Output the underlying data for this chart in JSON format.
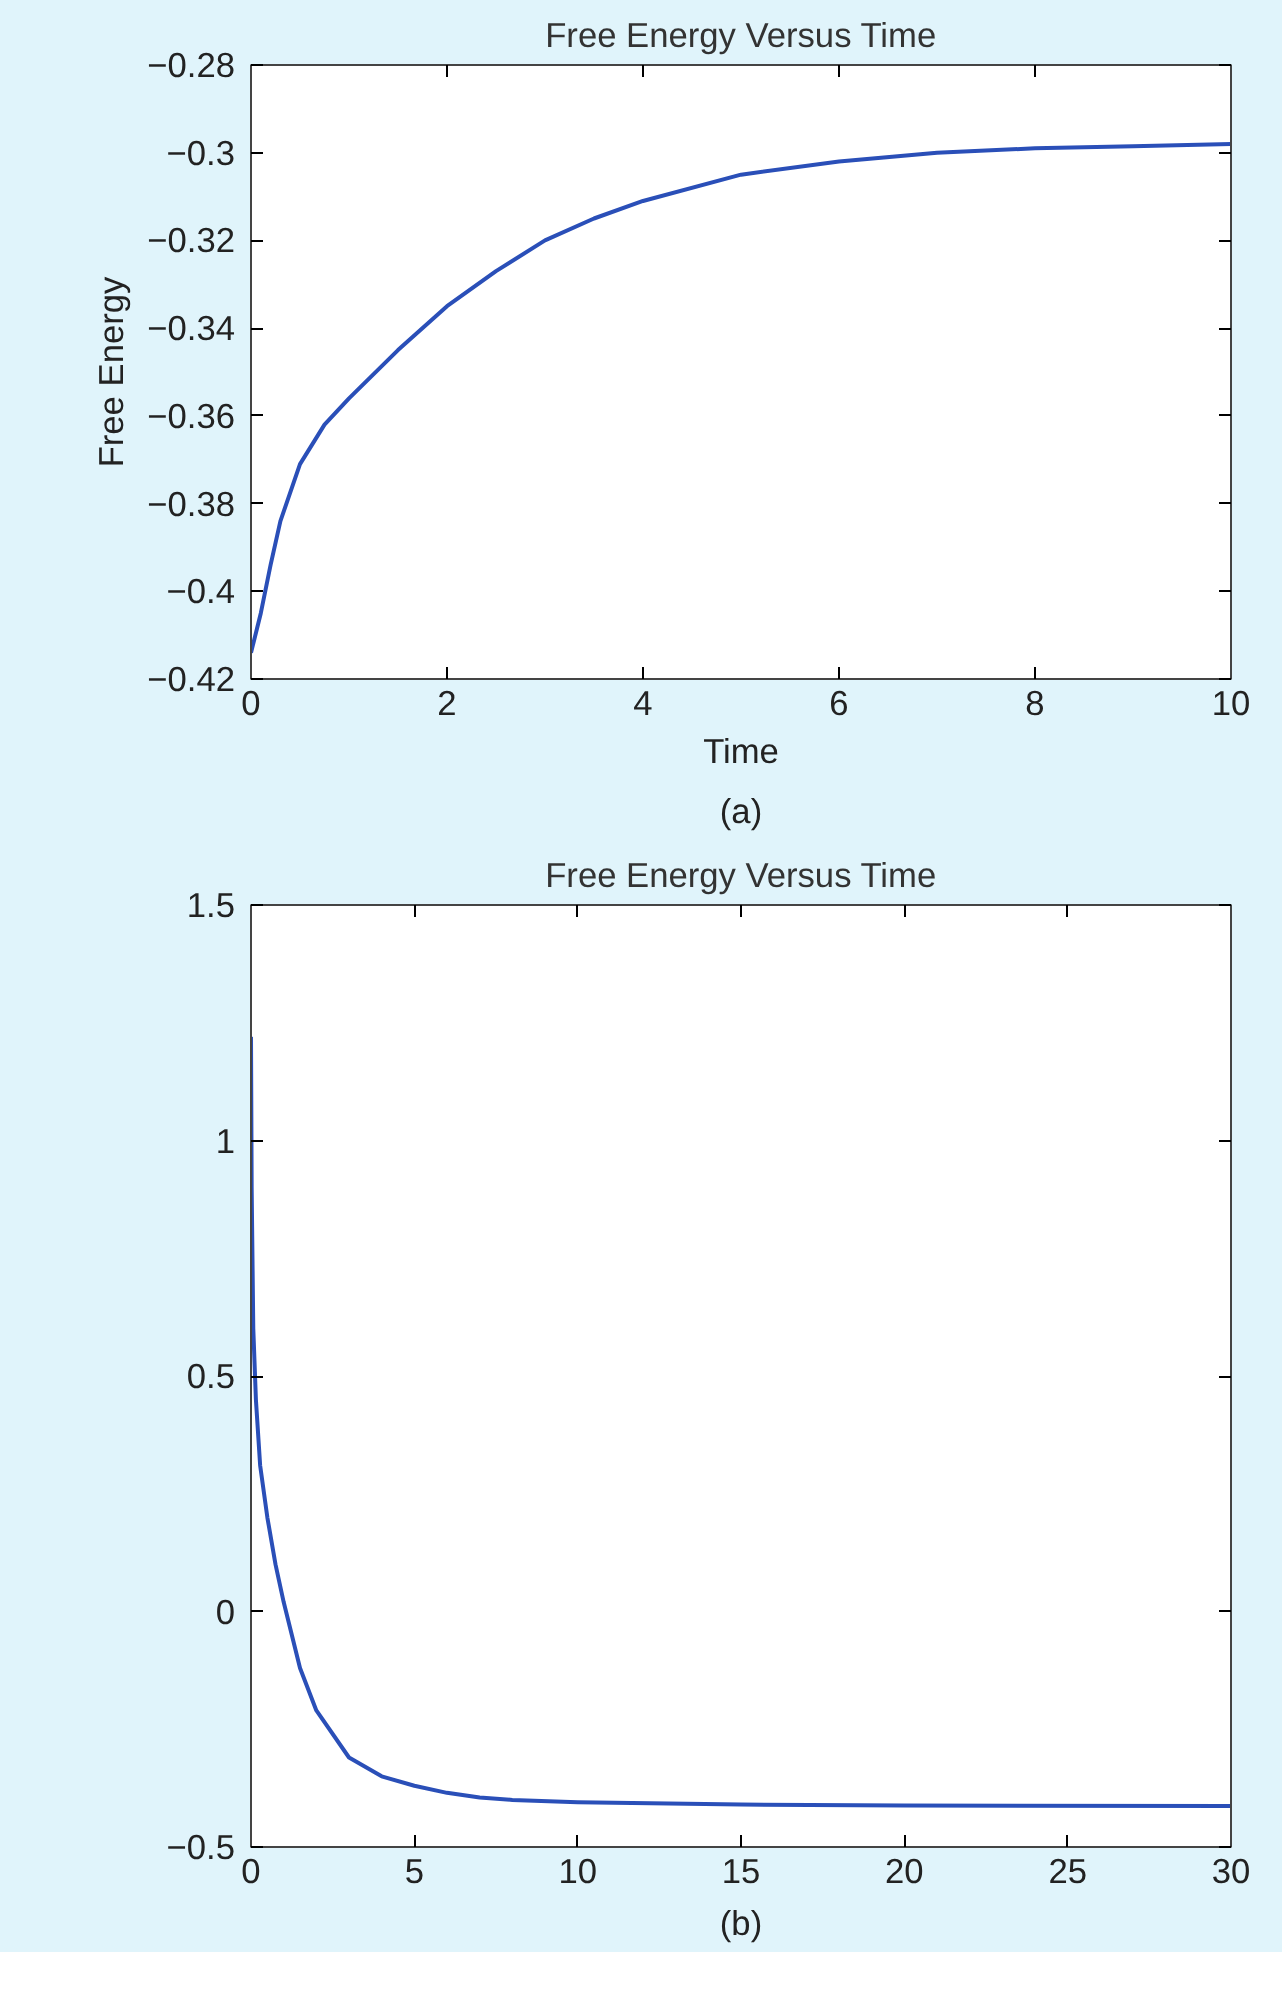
{
  "chart_data": [
    {
      "type": "line",
      "title": "Free Energy Versus Time",
      "xlabel": "Time",
      "ylabel": "Free Energy",
      "annotations": [
        "(a)"
      ],
      "x": [
        0,
        0.1,
        0.2,
        0.3,
        0.5,
        0.75,
        1,
        1.5,
        2,
        2.5,
        3,
        3.5,
        4,
        5,
        6,
        7,
        8,
        9,
        10
      ],
      "series": [
        {
          "color": "#2a4fb8",
          "values": [
            -0.414,
            -0.405,
            -0.394,
            -0.384,
            -0.371,
            -0.362,
            -0.356,
            -0.345,
            -0.335,
            -0.327,
            -0.32,
            -0.315,
            -0.311,
            -0.305,
            -0.302,
            -0.3,
            -0.299,
            -0.2985,
            -0.298
          ]
        }
      ],
      "xlim": [
        0,
        10
      ],
      "xticks": [
        0,
        2,
        4,
        6,
        8,
        10
      ],
      "ylim": [
        -0.42,
        -0.28
      ],
      "yticks": [
        {
          "value": -0.42,
          "label": "−0.42"
        },
        {
          "value": -0.4,
          "label": "−0.4"
        },
        {
          "value": -0.38,
          "label": "−0.38"
        },
        {
          "value": -0.36,
          "label": "−0.36"
        },
        {
          "value": -0.34,
          "label": "−0.34"
        },
        {
          "value": -0.32,
          "label": "−0.32"
        },
        {
          "value": -0.3,
          "label": "−0.3"
        },
        {
          "value": -0.28,
          "label": "−0.28"
        }
      ],
      "grid": false,
      "marker": "none",
      "line_style": "solid"
    },
    {
      "type": "line",
      "title": "Free Energy Versus Time",
      "annotations": [
        "(b)"
      ],
      "x": [
        0,
        0.02,
        0.07,
        0.15,
        0.28,
        0.5,
        0.75,
        1,
        1.5,
        2,
        3,
        4,
        5,
        6,
        7,
        8,
        10,
        15,
        20,
        30
      ],
      "series": [
        {
          "color": "#2a4fb8",
          "values": [
            1.22,
            0.9,
            0.6,
            0.45,
            0.31,
            0.2,
            0.1,
            0.02,
            -0.12,
            -0.21,
            -0.31,
            -0.35,
            -0.37,
            -0.385,
            -0.395,
            -0.4,
            -0.405,
            -0.41,
            -0.412,
            -0.413
          ]
        }
      ],
      "xlim": [
        0,
        30
      ],
      "xticks": [
        0,
        5,
        10,
        15,
        20,
        25,
        30
      ],
      "ylim": [
        -0.5,
        1.5
      ],
      "yticks": [
        {
          "value": -0.5,
          "label": "−0.5"
        },
        0,
        0.5,
        1,
        1.5
      ],
      "grid": false,
      "marker": "none",
      "line_style": "solid"
    }
  ]
}
